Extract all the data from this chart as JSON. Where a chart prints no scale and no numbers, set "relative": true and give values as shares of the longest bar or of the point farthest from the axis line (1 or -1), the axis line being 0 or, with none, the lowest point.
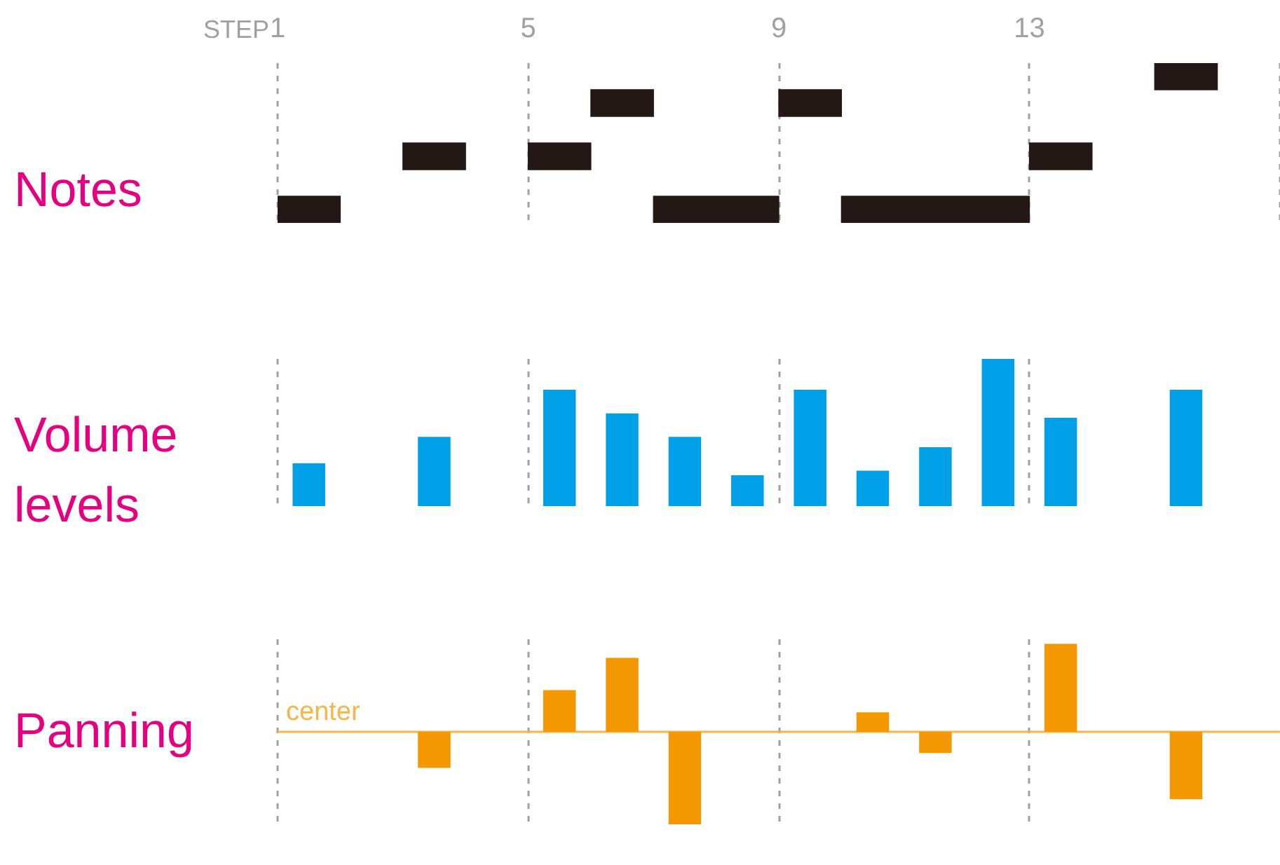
{
  "chart_data": [
    {
      "type": "bar",
      "orientation": "horizontal",
      "ylabel": "Notes",
      "xlabel": "STEP",
      "categories": [
        null,
        null,
        null,
        null,
        null,
        null
      ],
      "xlim": [
        1,
        17
      ],
      "xticks": [
        1,
        5,
        9,
        13,
        {
          "value": 17,
          "label": null
        }
      ],
      "grid": "x",
      "legend": false,
      "tick_labels": "x",
      "series": [
        {
          "color": "#231815",
          "base": [
            15,
            6,
            null,
            3,
            null,
            1
          ],
          "values": [
            1,
            1,
            null,
            1,
            null,
            1
          ]
        },
        {
          "color": "#231815",
          "base": [
            null,
            9,
            null,
            5,
            null,
            7
          ],
          "values": [
            null,
            1,
            null,
            1,
            null,
            2
          ]
        },
        {
          "color": "#231815",
          "base": [
            null,
            null,
            null,
            13,
            null,
            10
          ],
          "values": [
            null,
            null,
            null,
            1,
            null,
            3
          ]
        }
      ]
    },
    {
      "type": "bar",
      "ylabel": "Volume levels",
      "relative": true,
      "categories": [
        "1",
        null,
        null,
        null,
        "5",
        null,
        null,
        null,
        "9",
        null,
        null,
        null,
        "13",
        null,
        null,
        null
      ],
      "grid": "x",
      "legend": false,
      "tick_labels": false,
      "color": "#00a0e9",
      "values": [
        0.29,
        null,
        0.47,
        null,
        0.79,
        0.63,
        0.47,
        0.21,
        0.79,
        0.24,
        0.4,
        1,
        0.6,
        null,
        0.79,
        null
      ]
    },
    {
      "type": "bar",
      "ylabel": "Panning",
      "relative": true,
      "categories": [
        "1",
        null,
        null,
        null,
        "5",
        null,
        null,
        null,
        "9",
        null,
        null,
        null,
        "13",
        null,
        null,
        null
      ],
      "grid": "x",
      "legend": false,
      "tick_labels": false,
      "color": "#f39800",
      "values": [
        null,
        null,
        -0.39,
        null,
        0.45,
        0.8,
        -1,
        null,
        null,
        0.21,
        -0.23,
        null,
        0.95,
        null,
        -0.73,
        null
      ],
      "ref_lines": [
        {
          "axis": "y",
          "value": 0,
          "label": "center",
          "color": "#f5b54a"
        }
      ]
    }
  ]
}
